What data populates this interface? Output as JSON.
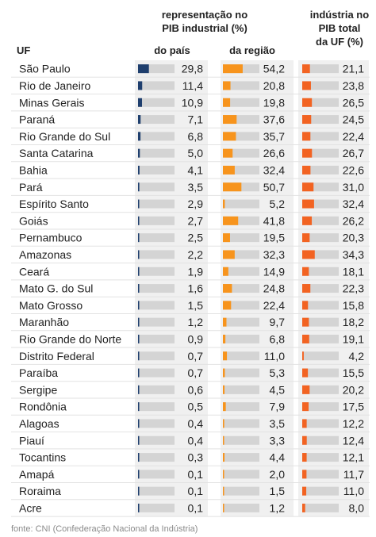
{
  "header": {
    "uf_label": "UF",
    "group1_line1": "representação no",
    "group1_line2": "PIB industrial (%)",
    "sub_pais": "do país",
    "sub_regiao": "da região",
    "group2_line1": "indústria no",
    "group2_line2": "PIB total",
    "group2_line3": "da UF (%)"
  },
  "source": "fonte: CNI (Confederação Nacional da Indústria)",
  "colors": {
    "pais_bar": "#1f3f6e",
    "regiao_bar": "#f7941d",
    "pib_bar": "#f26322",
    "track": "#d4d4d4",
    "row_divider": "#e2e2e2",
    "column_background": "#f0f0f0"
  },
  "chart_data": {
    "type": "table",
    "columns": [
      "UF",
      "do país",
      "da região",
      "indústria no PIB total da UF (%)"
    ],
    "rows": [
      {
        "uf": "São Paulo",
        "pais": 29.8,
        "pais_label": "29,8",
        "regiao": 54.2,
        "regiao_label": "54,2",
        "pib": 21.1,
        "pib_label": "21,1"
      },
      {
        "uf": "Rio de Janeiro",
        "pais": 11.4,
        "pais_label": "11,4",
        "regiao": 20.8,
        "regiao_label": "20,8",
        "pib": 23.8,
        "pib_label": "23,8"
      },
      {
        "uf": "Minas Gerais",
        "pais": 10.9,
        "pais_label": "10,9",
        "regiao": 19.8,
        "regiao_label": "19,8",
        "pib": 26.5,
        "pib_label": "26,5"
      },
      {
        "uf": "Paraná",
        "pais": 7.1,
        "pais_label": "7,1",
        "regiao": 37.6,
        "regiao_label": "37,6",
        "pib": 24.5,
        "pib_label": "24,5"
      },
      {
        "uf": "Rio Grande do Sul",
        "pais": 6.8,
        "pais_label": "6,8",
        "regiao": 35.7,
        "regiao_label": "35,7",
        "pib": 22.4,
        "pib_label": "22,4"
      },
      {
        "uf": "Santa Catarina",
        "pais": 5.0,
        "pais_label": "5,0",
        "regiao": 26.6,
        "regiao_label": "26,6",
        "pib": 26.7,
        "pib_label": "26,7"
      },
      {
        "uf": "Bahia",
        "pais": 4.1,
        "pais_label": "4,1",
        "regiao": 32.4,
        "regiao_label": "32,4",
        "pib": 22.6,
        "pib_label": "22,6"
      },
      {
        "uf": "Pará",
        "pais": 3.5,
        "pais_label": "3,5",
        "regiao": 50.7,
        "regiao_label": "50,7",
        "pib": 31.0,
        "pib_label": "31,0"
      },
      {
        "uf": "Espírito Santo",
        "pais": 2.9,
        "pais_label": "2,9",
        "regiao": 5.2,
        "regiao_label": "5,2",
        "pib": 32.4,
        "pib_label": "32,4"
      },
      {
        "uf": "Goiás",
        "pais": 2.7,
        "pais_label": "2,7",
        "regiao": 41.8,
        "regiao_label": "41,8",
        "pib": 26.2,
        "pib_label": "26,2"
      },
      {
        "uf": "Pernambuco",
        "pais": 2.5,
        "pais_label": "2,5",
        "regiao": 19.5,
        "regiao_label": "19,5",
        "pib": 20.3,
        "pib_label": "20,3"
      },
      {
        "uf": "Amazonas",
        "pais": 2.2,
        "pais_label": "2,2",
        "regiao": 32.3,
        "regiao_label": "32,3",
        "pib": 34.3,
        "pib_label": "34,3"
      },
      {
        "uf": "Ceará",
        "pais": 1.9,
        "pais_label": "1,9",
        "regiao": 14.9,
        "regiao_label": "14,9",
        "pib": 18.1,
        "pib_label": "18,1"
      },
      {
        "uf": "Mato G. do Sul",
        "pais": 1.6,
        "pais_label": "1,6",
        "regiao": 24.8,
        "regiao_label": "24,8",
        "pib": 22.3,
        "pib_label": "22,3"
      },
      {
        "uf": "Mato Grosso",
        "pais": 1.5,
        "pais_label": "1,5",
        "regiao": 22.4,
        "regiao_label": "22,4",
        "pib": 15.8,
        "pib_label": "15,8"
      },
      {
        "uf": "Maranhão",
        "pais": 1.2,
        "pais_label": "1,2",
        "regiao": 9.7,
        "regiao_label": "9,7",
        "pib": 18.2,
        "pib_label": "18,2"
      },
      {
        "uf": "Rio Grande do Norte",
        "pais": 0.9,
        "pais_label": "0,9",
        "regiao": 6.8,
        "regiao_label": "6,8",
        "pib": 19.1,
        "pib_label": "19,1"
      },
      {
        "uf": "Distrito Federal",
        "pais": 0.7,
        "pais_label": "0,7",
        "regiao": 11.0,
        "regiao_label": "11,0",
        "pib": 4.2,
        "pib_label": "4,2"
      },
      {
        "uf": "Paraíba",
        "pais": 0.7,
        "pais_label": "0,7",
        "regiao": 5.3,
        "regiao_label": "5,3",
        "pib": 15.5,
        "pib_label": "15,5"
      },
      {
        "uf": "Sergipe",
        "pais": 0.6,
        "pais_label": "0,6",
        "regiao": 4.5,
        "regiao_label": "4,5",
        "pib": 20.2,
        "pib_label": "20,2"
      },
      {
        "uf": "Rondônia",
        "pais": 0.5,
        "pais_label": "0,5",
        "regiao": 7.9,
        "regiao_label": "7,9",
        "pib": 17.5,
        "pib_label": "17,5"
      },
      {
        "uf": "Alagoas",
        "pais": 0.4,
        "pais_label": "0,4",
        "regiao": 3.5,
        "regiao_label": "3,5",
        "pib": 12.2,
        "pib_label": "12,2"
      },
      {
        "uf": "Piauí",
        "pais": 0.4,
        "pais_label": "0,4",
        "regiao": 3.3,
        "regiao_label": "3,3",
        "pib": 12.4,
        "pib_label": "12,4"
      },
      {
        "uf": "Tocantins",
        "pais": 0.3,
        "pais_label": "0,3",
        "regiao": 4.4,
        "regiao_label": "4,4",
        "pib": 12.1,
        "pib_label": "12,1"
      },
      {
        "uf": "Amapá",
        "pais": 0.1,
        "pais_label": "0,1",
        "regiao": 2.0,
        "regiao_label": "2,0",
        "pib": 11.7,
        "pib_label": "11,7"
      },
      {
        "uf": "Roraima",
        "pais": 0.1,
        "pais_label": "0,1",
        "regiao": 1.5,
        "regiao_label": "1,5",
        "pib": 11.0,
        "pib_label": "11,0"
      },
      {
        "uf": "Acre",
        "pais": 0.1,
        "pais_label": "0,1",
        "regiao": 1.2,
        "regiao_label": "1,2",
        "pib": 8.0,
        "pib_label": "8,0"
      }
    ],
    "scales": {
      "pais_max": 100,
      "regiao_max": 100,
      "pib_max": 100
    },
    "title": "",
    "grid": false
  }
}
